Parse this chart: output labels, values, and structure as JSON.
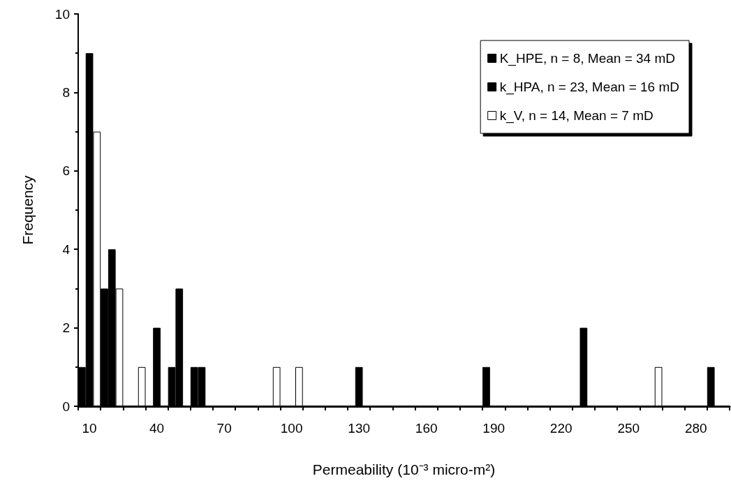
{
  "chart_data": {
    "type": "bar",
    "xlabel": "Permeability (10⁻³ micro-m²)",
    "ylabel": "Frequency",
    "categories": [
      "10",
      null,
      null,
      "40",
      null,
      null,
      "70",
      null,
      null,
      "100",
      null,
      null,
      "130",
      null,
      null,
      "160",
      null,
      null,
      "190",
      null,
      null,
      "220",
      null,
      null,
      "250",
      null,
      null,
      "280",
      null
    ],
    "series": [
      {
        "name": "K_HPE, n = 8, Mean = 34 mD",
        "color": "#000000",
        "values": [
          1,
          3,
          0,
          0,
          1,
          1,
          0,
          0,
          0,
          0,
          0,
          0,
          0,
          0,
          0,
          0,
          0,
          0,
          1,
          0,
          0,
          0,
          0,
          0,
          0,
          0,
          0,
          0,
          1
        ]
      },
      {
        "name": "k_HPA, n = 23, Mean = 16 mD",
        "color": "#000000",
        "values": [
          9,
          4,
          0,
          2,
          3,
          1,
          0,
          0,
          0,
          0,
          0,
          0,
          1,
          0,
          0,
          0,
          0,
          0,
          0,
          0,
          0,
          0,
          2,
          0,
          0,
          0,
          0,
          0,
          0
        ]
      },
      {
        "name": "k_V, n = 14, Mean = 7 mD",
        "color": "#ffffff",
        "values": [
          7,
          3,
          1,
          0,
          0,
          0,
          0,
          0,
          1,
          1,
          0,
          0,
          0,
          0,
          0,
          0,
          0,
          0,
          0,
          0,
          0,
          0,
          0,
          0,
          0,
          1,
          0,
          0,
          0
        ]
      }
    ],
    "ylim": [
      0,
      10
    ],
    "yticks": [
      0,
      2,
      4,
      6,
      8,
      10
    ],
    "grid": false,
    "legend": "top right"
  }
}
